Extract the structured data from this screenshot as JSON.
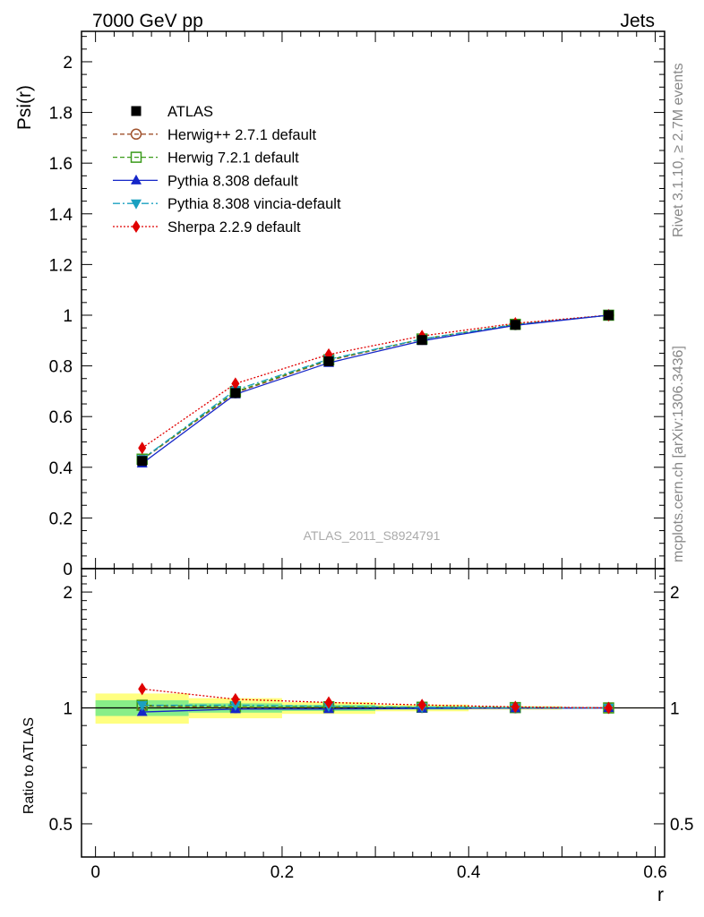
{
  "header": {
    "left": "7000 GeV pp",
    "right": "Jets"
  },
  "side_text": {
    "top": "Rivet 3.1.10, ≥ 2.7M events",
    "bottom": "mcplots.cern.ch [arXiv:1306.3436]"
  },
  "watermark": "ATLAS_2011_S8924791",
  "colors": {
    "atlas": "#000000",
    "herwigpp": "#a0522d",
    "herwig7": "#3a9a1a",
    "pythia": "#1526c8",
    "vincia": "#1aa0c0",
    "sherpa": "#e00000",
    "band_outer": "#ffff80",
    "band_inner": "#88ee88"
  },
  "chart_data": [
    {
      "type": "line",
      "panel": "main",
      "ylabel": "Psi(r)",
      "xlim": [
        -0.015,
        0.61
      ],
      "ylim": [
        0,
        2.12
      ],
      "x": [
        0.05,
        0.15,
        0.25,
        0.35,
        0.45,
        0.55
      ],
      "yticks": [
        "0",
        "0.2",
        "0.4",
        "0.6",
        "0.8",
        "1",
        "1.2",
        "1.4",
        "1.6",
        "1.8",
        "2"
      ],
      "legend_position": "top-left",
      "series": [
        {
          "name": "ATLAS",
          "key": "atlas",
          "marker": "square",
          "values": [
            0.425,
            0.693,
            0.818,
            0.902,
            0.962,
            1.0
          ]
        },
        {
          "name": "Herwig++ 2.7.1 default",
          "key": "herwigpp",
          "marker": "circle-open",
          "values": [
            0.43,
            0.694,
            0.821,
            0.905,
            0.963,
            1.0
          ]
        },
        {
          "name": "Herwig 7.2.1 default",
          "key": "herwig7",
          "marker": "square-open",
          "values": [
            0.432,
            0.698,
            0.824,
            0.906,
            0.964,
            1.0
          ]
        },
        {
          "name": "Pythia 8.308 default",
          "key": "pythia",
          "marker": "triangle-up",
          "values": [
            0.415,
            0.688,
            0.812,
            0.899,
            0.96,
            1.0
          ]
        },
        {
          "name": "Pythia 8.308 vincia-default",
          "key": "vincia",
          "marker": "triangle-down",
          "values": [
            0.432,
            0.705,
            0.826,
            0.906,
            0.963,
            1.0
          ]
        },
        {
          "name": "Sherpa 2.2.9 default",
          "key": "sherpa",
          "marker": "diamond",
          "values": [
            0.476,
            0.73,
            0.845,
            0.918,
            0.968,
            1.0
          ]
        }
      ]
    },
    {
      "type": "line",
      "panel": "ratio",
      "ylabel": "Ratio to ATLAS",
      "xlabel": "r",
      "scale": "log",
      "ylim": [
        0.41,
        2.3
      ],
      "xticks": [
        "0",
        "0.2",
        "0.4",
        "0.6"
      ],
      "yticks": [
        "0.5",
        "1",
        "2"
      ],
      "x": [
        0.05,
        0.15,
        0.25,
        0.35,
        0.45,
        0.55
      ],
      "bands": {
        "x_edges": [
          0.0,
          0.1,
          0.2,
          0.3,
          0.4,
          0.5,
          0.6
        ],
        "outer": [
          [
            0.91,
            1.09
          ],
          [
            0.94,
            1.06
          ],
          [
            0.965,
            1.035
          ],
          [
            0.98,
            1.02
          ],
          [
            0.99,
            1.01
          ],
          [
            0.997,
            1.003
          ]
        ],
        "inner": [
          [
            0.953,
            1.047
          ],
          [
            0.972,
            1.028
          ],
          [
            0.982,
            1.018
          ],
          [
            0.99,
            1.01
          ],
          [
            0.995,
            1.005
          ],
          [
            0.999,
            1.001
          ]
        ]
      },
      "series": [
        {
          "key": "herwigpp",
          "marker": "circle-open",
          "values": [
            1.012,
            1.002,
            1.004,
            1.003,
            1.001,
            1.0
          ]
        },
        {
          "key": "herwig7",
          "marker": "square-open",
          "values": [
            1.016,
            1.007,
            1.007,
            1.004,
            1.002,
            1.0
          ]
        },
        {
          "key": "pythia",
          "marker": "triangle-up",
          "values": [
            0.976,
            0.993,
            0.993,
            0.997,
            0.998,
            1.0
          ]
        },
        {
          "key": "vincia",
          "marker": "triangle-down",
          "values": [
            1.016,
            1.017,
            1.01,
            1.004,
            1.001,
            1.0
          ]
        },
        {
          "key": "sherpa",
          "marker": "diamond",
          "values": [
            1.12,
            1.053,
            1.033,
            1.018,
            1.006,
            1.0
          ]
        }
      ]
    }
  ]
}
